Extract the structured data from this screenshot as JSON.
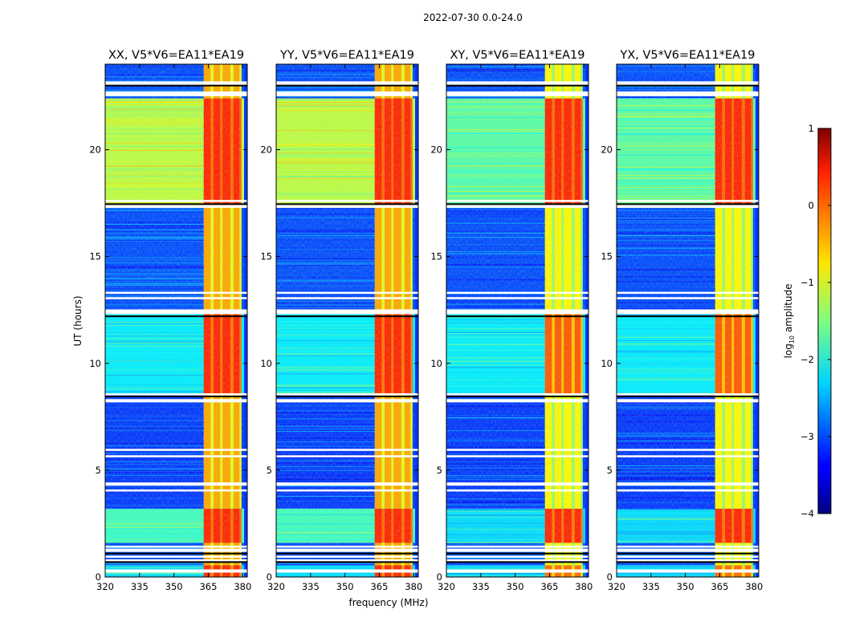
{
  "figure": {
    "suptitle": "2022-07-30 0.0-24.0",
    "xlabel": "frequency (MHz)",
    "ylabel": "UT (hours)",
    "colorbar": {
      "label_prefix": "log",
      "label_sub": "10",
      "label_suffix": " amplitude",
      "colormap": "jet",
      "ticks": [
        "1",
        "0",
        "−1",
        "−2",
        "−3",
        "−4"
      ]
    }
  },
  "chart_data": {
    "type": "heatmap",
    "title": "2022-07-30 0.0-24.0",
    "xlabel": "frequency (MHz)",
    "ylabel": "UT (hours)",
    "xlim": [
      320,
      382
    ],
    "ylim": [
      0,
      24
    ],
    "xticks": [
      320,
      335,
      350,
      365,
      380
    ],
    "yticks": [
      0,
      5,
      10,
      15,
      20
    ],
    "clim": [
      -4,
      1
    ],
    "panels": [
      {
        "title": "XX, V5*V6=EA11*EA19"
      },
      {
        "title": "YY, V5*V6=EA11*EA19"
      },
      {
        "title": "XY, V5*V6=EA11*EA19"
      },
      {
        "title": "YX, V5*V6=EA11*EA19"
      }
    ],
    "bright_band_mhz": [
      363,
      379.5
    ],
    "flagged_ut_hours": [
      0.28,
      0.78,
      0.95,
      1.25,
      1.42,
      4.05,
      4.35,
      5.65,
      5.95,
      8.25,
      8.55,
      12.35,
      12.45,
      13.05,
      13.3,
      17.35,
      17.6,
      22.55,
      22.65,
      23.05,
      23.15
    ],
    "ut_segments": [
      {
        "from": 0.0,
        "to": 0.55,
        "level": -2.3
      },
      {
        "from": 0.55,
        "to": 1.6,
        "level": -3.0
      },
      {
        "from": 1.6,
        "to": 3.2,
        "level": -1.8
      },
      {
        "from": 3.2,
        "to": 8.6,
        "level": -3.1
      },
      {
        "from": 8.6,
        "to": 12.3,
        "level": -2.2
      },
      {
        "from": 12.3,
        "to": 17.4,
        "level": -3.0
      },
      {
        "from": 17.4,
        "to": 22.4,
        "level": -1.2
      },
      {
        "from": 22.4,
        "to": 24.0,
        "level": -3.0
      }
    ]
  }
}
